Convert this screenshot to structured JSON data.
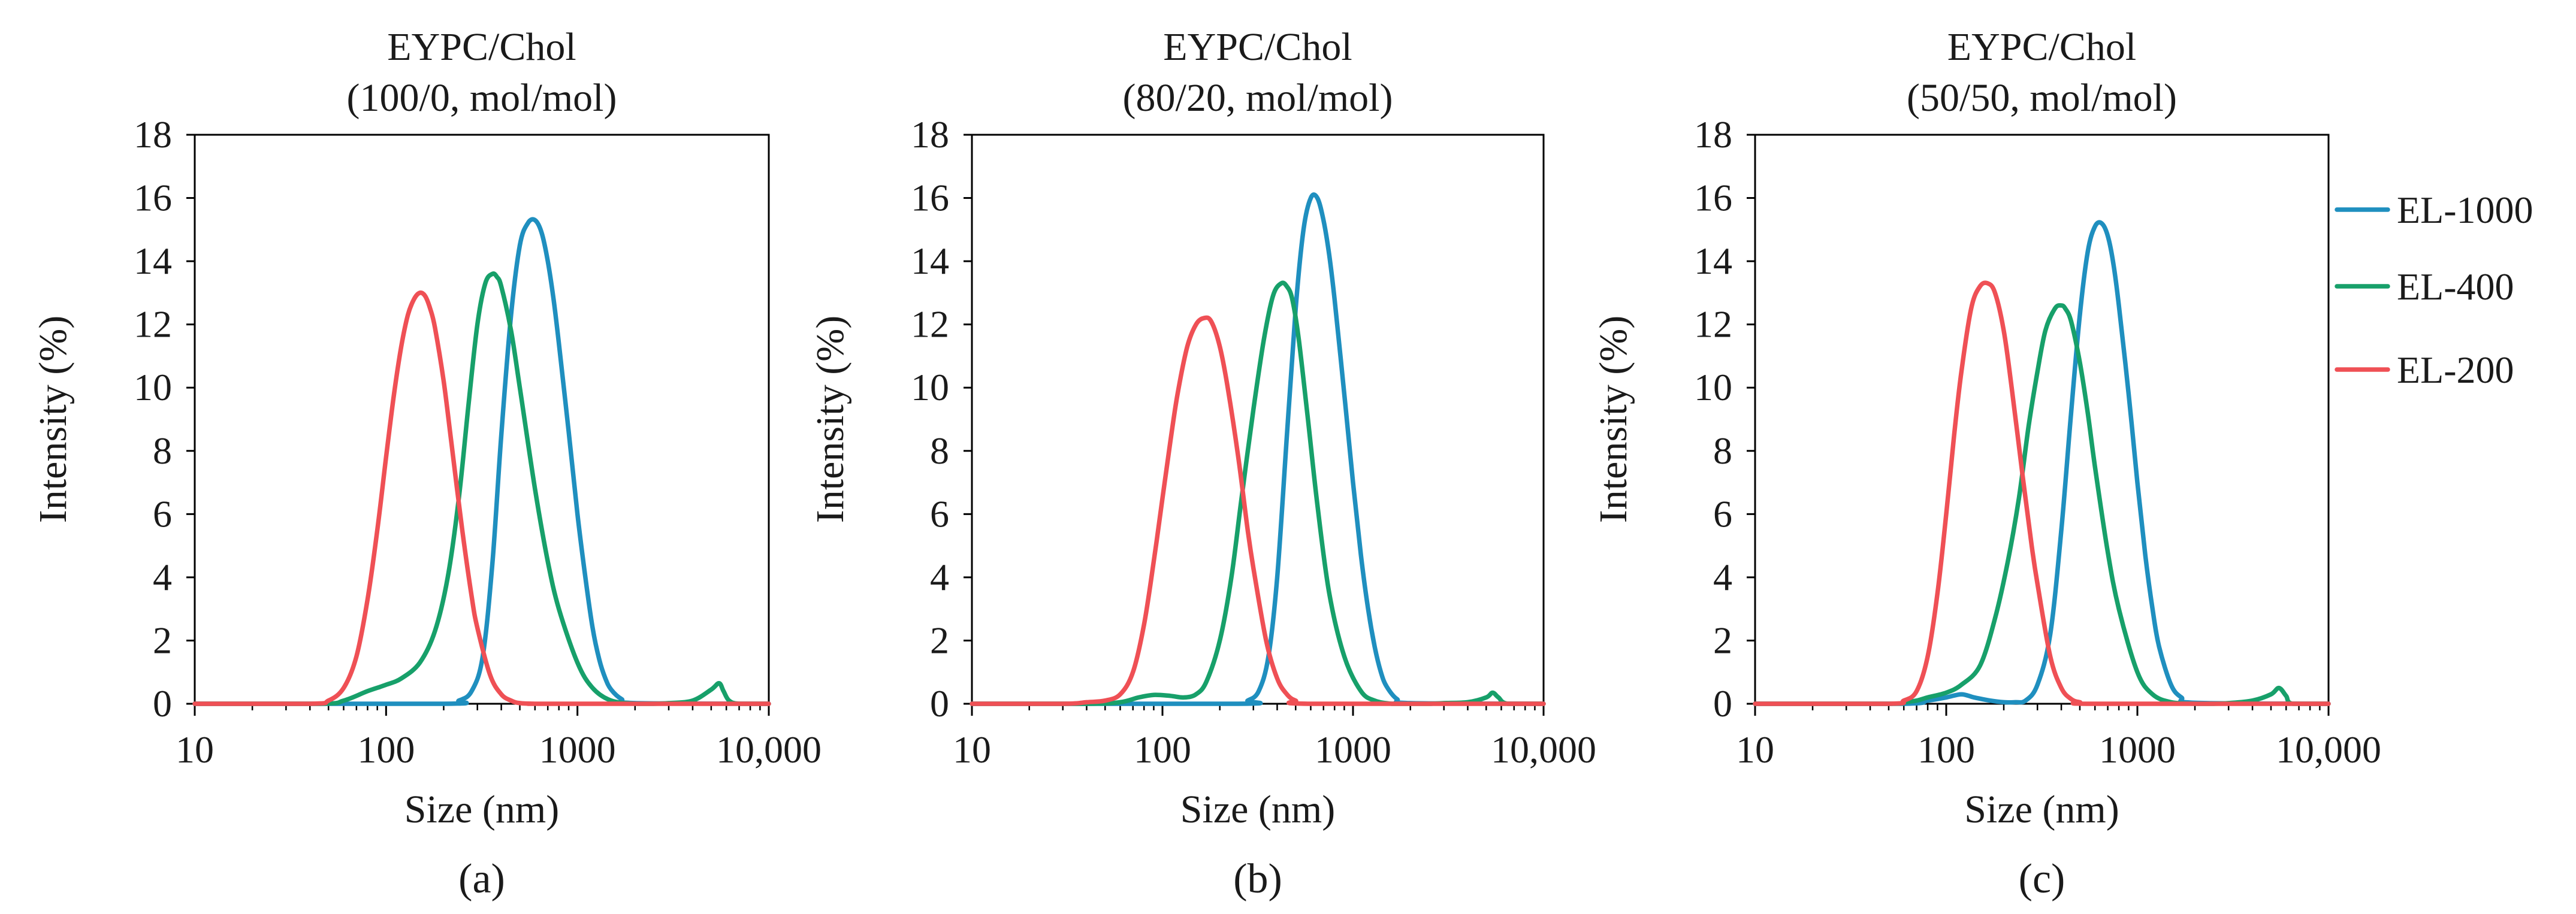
{
  "chart_data": [
    {
      "type": "line",
      "panel_label": "(a)",
      "title_line1": "EYPC/Chol",
      "title_line2": "(100/0, mol/mol)",
      "xlabel": "Size (nm)",
      "ylabel": "Intensity (%)",
      "xscale": "log",
      "xlim": [
        10,
        10000
      ],
      "ylim": [
        0,
        18
      ],
      "xticks": [
        10,
        100,
        1000,
        10000
      ],
      "xtick_labels": [
        "10",
        "100",
        "1000",
        "10,000"
      ],
      "yticks": [
        0,
        2,
        4,
        6,
        8,
        10,
        12,
        14,
        16,
        18
      ],
      "ytick_labels": [
        "0",
        "2",
        "4",
        "6",
        "8",
        "10",
        "12",
        "14",
        "16",
        "18"
      ],
      "series": [
        {
          "name": "EL-1000",
          "x": [
            10,
            200,
            240,
            280,
            320,
            360,
            400,
            450,
            500,
            550,
            600,
            650,
            700,
            750,
            800,
            900,
            1000,
            1100,
            1200,
            1300,
            1400,
            1500,
            1700,
            2000,
            10000
          ],
          "y": [
            0,
            0,
            0.1,
            0.4,
            1.5,
            4.5,
            8.5,
            12.3,
            14.5,
            15.2,
            15.3,
            14.9,
            14.0,
            12.8,
            11.4,
            8.6,
            6.0,
            4.0,
            2.4,
            1.4,
            0.8,
            0.45,
            0.15,
            0.02,
            0
          ]
        },
        {
          "name": "EL-400",
          "x": [
            10,
            45,
            60,
            80,
            100,
            120,
            150,
            180,
            210,
            240,
            270,
            300,
            330,
            360,
            380,
            400,
            450,
            500,
            600,
            700,
            800,
            1000,
            1200,
            1500,
            2000,
            2500,
            3000,
            4000,
            5000,
            5500,
            5800,
            6200,
            7000,
            10000
          ],
          "y": [
            0,
            0,
            0.1,
            0.4,
            0.6,
            0.8,
            1.3,
            2.3,
            4.0,
            6.5,
            9.5,
            12.0,
            13.3,
            13.6,
            13.5,
            13.2,
            11.8,
            10.0,
            6.8,
            4.5,
            3.0,
            1.3,
            0.5,
            0.1,
            0,
            0,
            0.02,
            0.1,
            0.45,
            0.65,
            0.4,
            0.1,
            0,
            0
          ]
        },
        {
          "name": "EL-200",
          "x": [
            10,
            40,
            50,
            60,
            70,
            80,
            90,
            100,
            110,
            120,
            130,
            140,
            150,
            160,
            170,
            180,
            200,
            220,
            250,
            280,
            300,
            350,
            400,
            450,
            500,
            600,
            700,
            10000
          ],
          "y": [
            0,
            0,
            0.1,
            0.5,
            1.5,
            3.3,
            5.5,
            7.8,
            9.8,
            11.3,
            12.3,
            12.8,
            13.0,
            12.9,
            12.5,
            11.9,
            10.2,
            8.2,
            5.5,
            3.4,
            2.4,
            0.9,
            0.3,
            0.1,
            0.02,
            0,
            0,
            0
          ]
        }
      ]
    },
    {
      "type": "line",
      "panel_label": "(b)",
      "title_line1": "EYPC/Chol",
      "title_line2": "(80/20, mol/mol)",
      "xlabel": "Size (nm)",
      "ylabel": "Intensity (%)",
      "xscale": "log",
      "xlim": [
        10,
        10000
      ],
      "ylim": [
        0,
        18
      ],
      "xticks": [
        10,
        100,
        1000,
        10000
      ],
      "xtick_labels": [
        "10",
        "100",
        "1000",
        "10,000"
      ],
      "yticks": [
        0,
        2,
        4,
        6,
        8,
        10,
        12,
        14,
        16,
        18
      ],
      "ytick_labels": [
        "0",
        "2",
        "4",
        "6",
        "8",
        "10",
        "12",
        "14",
        "16",
        "18"
      ],
      "series": [
        {
          "name": "EL-1000",
          "x": [
            10,
            250,
            280,
            320,
            360,
            400,
            450,
            500,
            550,
            600,
            650,
            700,
            750,
            800,
            900,
            1000,
            1100,
            1200,
            1300,
            1400,
            1500,
            1700,
            2000,
            10000
          ],
          "y": [
            0,
            0,
            0.1,
            0.4,
            1.5,
            4.0,
            8.5,
            12.5,
            15.0,
            16.0,
            16.0,
            15.3,
            14.2,
            12.8,
            9.8,
            7.0,
            4.7,
            3.0,
            1.8,
            1.0,
            0.55,
            0.15,
            0.02,
            0
          ]
        },
        {
          "name": "EL-400",
          "x": [
            10,
            40,
            60,
            75,
            90,
            110,
            130,
            150,
            170,
            200,
            230,
            260,
            300,
            340,
            380,
            420,
            450,
            480,
            520,
            580,
            650,
            750,
            900,
            1100,
            1300,
            1600,
            2000,
            2500,
            3000,
            4000,
            5000,
            5400,
            5800,
            6500,
            10000
          ],
          "y": [
            0,
            0,
            0.05,
            0.2,
            0.28,
            0.25,
            0.2,
            0.3,
            0.7,
            2.0,
            4.0,
            6.5,
            9.3,
            11.5,
            12.9,
            13.3,
            13.2,
            12.8,
            11.5,
            9.0,
            6.3,
            3.5,
            1.5,
            0.4,
            0.1,
            0,
            0,
            0,
            0.02,
            0.05,
            0.2,
            0.35,
            0.2,
            0,
            0
          ]
        },
        {
          "name": "EL-200",
          "x": [
            10,
            30,
            40,
            50,
            60,
            70,
            80,
            90,
            100,
            110,
            120,
            135,
            150,
            165,
            180,
            200,
            220,
            250,
            280,
            300,
            350,
            400,
            450,
            500,
            600,
            10000
          ],
          "y": [
            0,
            0,
            0.05,
            0.1,
            0.3,
            1.0,
            2.5,
            4.5,
            6.5,
            8.3,
            9.8,
            11.3,
            12.0,
            12.2,
            12.1,
            11.3,
            10.0,
            7.8,
            5.5,
            4.3,
            2.0,
            0.8,
            0.3,
            0.1,
            0,
            0
          ]
        }
      ]
    },
    {
      "type": "line",
      "panel_label": "(c)",
      "title_line1": "EYPC/Chol",
      "title_line2": "(50/50, mol/mol)",
      "xlabel": "Size (nm)",
      "ylabel": "Intensity (%)",
      "xscale": "log",
      "xlim": [
        10,
        10000
      ],
      "ylim": [
        0,
        18
      ],
      "xticks": [
        10,
        100,
        1000,
        10000
      ],
      "xtick_labels": [
        "10",
        "100",
        "1000",
        "10,000"
      ],
      "yticks": [
        0,
        2,
        4,
        6,
        8,
        10,
        12,
        14,
        16,
        18
      ],
      "ytick_labels": [
        "0",
        "2",
        "4",
        "6",
        "8",
        "10",
        "12",
        "14",
        "16",
        "18"
      ],
      "series": [
        {
          "name": "EL-1000",
          "x": [
            10,
            60,
            80,
            100,
            120,
            140,
            170,
            200,
            230,
            260,
            300,
            350,
            400,
            450,
            500,
            550,
            600,
            650,
            700,
            750,
            800,
            900,
            1000,
            1100,
            1200,
            1300,
            1500,
            1700,
            2000,
            10000
          ],
          "y": [
            0,
            0,
            0.1,
            0.2,
            0.3,
            0.2,
            0.1,
            0.05,
            0.05,
            0.1,
            0.6,
            2.2,
            5.5,
            9.2,
            12.3,
            14.3,
            15.1,
            15.2,
            14.8,
            13.9,
            12.6,
            9.8,
            7.0,
            4.7,
            3.0,
            1.8,
            0.6,
            0.2,
            0.03,
            0
          ]
        },
        {
          "name": "EL-400",
          "x": [
            10,
            50,
            60,
            70,
            80,
            100,
            120,
            150,
            180,
            210,
            240,
            270,
            300,
            330,
            370,
            400,
            420,
            450,
            500,
            550,
            600,
            700,
            800,
            1000,
            1200,
            1500,
            2000,
            2500,
            3000,
            4000,
            5000,
            5500,
            6000,
            6500,
            10000
          ],
          "y": [
            0,
            0,
            0.05,
            0.1,
            0.2,
            0.35,
            0.6,
            1.2,
            2.7,
            4.5,
            6.5,
            8.8,
            10.5,
            11.8,
            12.5,
            12.6,
            12.5,
            12.1,
            10.8,
            9.2,
            7.5,
            4.8,
            3.0,
            1.0,
            0.3,
            0.05,
            0,
            0,
            0.02,
            0.1,
            0.3,
            0.5,
            0.25,
            0,
            0
          ]
        },
        {
          "name": "EL-200",
          "x": [
            10,
            50,
            60,
            70,
            80,
            90,
            100,
            110,
            120,
            135,
            150,
            165,
            180,
            200,
            220,
            250,
            280,
            300,
            350,
            400,
            450,
            500,
            600,
            10000
          ],
          "y": [
            0,
            0,
            0.1,
            0.4,
            1.5,
            3.5,
            6.0,
            8.5,
            10.5,
            12.5,
            13.2,
            13.3,
            13.0,
            11.8,
            10.0,
            7.3,
            5.0,
            3.8,
            1.5,
            0.5,
            0.15,
            0.05,
            0,
            0
          ]
        }
      ]
    }
  ],
  "legend": {
    "entries": [
      {
        "name": "EL-1000",
        "color": "#1f8fbf"
      },
      {
        "name": "EL-400",
        "color": "#17a06a"
      },
      {
        "name": "EL-200",
        "color": "#ef5055"
      }
    ]
  }
}
